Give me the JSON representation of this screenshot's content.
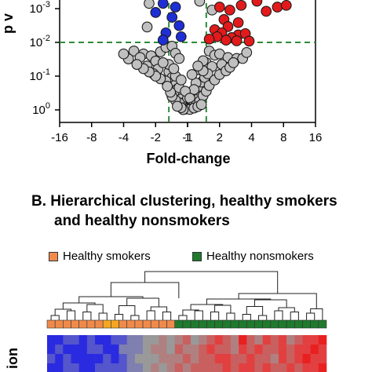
{
  "chart_data": [
    {
      "type": "scatter",
      "title": "",
      "xlabel": "Fold-change",
      "ylabel": "p v",
      "x_scale": "log2",
      "y_scale": "log10-reversed",
      "xlim": [
        -16,
        16
      ],
      "ylim": [
        1,
        0.0005
      ],
      "x_ticks": [
        "-16",
        "-8",
        "-4",
        "-2",
        "-1",
        "1",
        "2",
        "4",
        "8",
        "16"
      ],
      "y_ticks": [
        "10-3",
        "10-2",
        "10-1",
        "100"
      ],
      "thresholds": {
        "fold_change": [
          -1.5,
          1.5
        ],
        "p_value": 0.01,
        "style": "dashed",
        "color": "#2e8b3a"
      },
      "grid": false,
      "series": [
        {
          "name": "",
          "color": "#1f2fd6",
          "points": [
            {
              "x": -1.7,
              "y": 0.0007
            },
            {
              "x": -1.3,
              "y": 0.0009
            },
            {
              "x": -2.0,
              "y": 0.0013
            },
            {
              "x": -1.4,
              "y": 0.0018
            },
            {
              "x": -1.2,
              "y": 0.0032
            },
            {
              "x": -1.6,
              "y": 0.0052
            },
            {
              "x": -1.15,
              "y": 0.0068
            },
            {
              "x": -1.7,
              "y": 0.0085
            }
          ]
        },
        {
          "name": "",
          "color": "#e31a1c",
          "points": [
            {
              "x": 2.0,
              "y": 0.0009
            },
            {
              "x": 2.5,
              "y": 0.0011
            },
            {
              "x": 3.2,
              "y": 0.0008
            },
            {
              "x": 4.5,
              "y": 0.0006
            },
            {
              "x": 5.5,
              "y": 0.0012
            },
            {
              "x": 7.0,
              "y": 0.0009
            },
            {
              "x": 8.5,
              "y": 0.0008
            },
            {
              "x": 2.2,
              "y": 0.0021
            },
            {
              "x": 3.0,
              "y": 0.0026
            },
            {
              "x": 2.4,
              "y": 0.0034
            },
            {
              "x": 1.8,
              "y": 0.0042
            },
            {
              "x": 2.1,
              "y": 0.0052
            },
            {
              "x": 3.0,
              "y": 0.006
            },
            {
              "x": 3.5,
              "y": 0.0055
            },
            {
              "x": 1.9,
              "y": 0.0068
            },
            {
              "x": 2.6,
              "y": 0.0072
            },
            {
              "x": 1.6,
              "y": 0.008
            },
            {
              "x": 2.3,
              "y": 0.0086
            },
            {
              "x": 2.9,
              "y": 0.009
            },
            {
              "x": 3.8,
              "y": 0.0092
            }
          ]
        },
        {
          "name": "",
          "color": "#c0c0c0",
          "points": [
            {
              "x": -2.3,
              "y": 0.0007
            },
            {
              "x": 1.3,
              "y": 0.0006
            },
            {
              "x": 1.7,
              "y": 0.0011
            },
            {
              "x": -2.4,
              "y": 0.0035
            },
            {
              "x": -3.2,
              "y": 0.018
            },
            {
              "x": -2.6,
              "y": 0.022
            },
            {
              "x": -2.8,
              "y": 0.028
            },
            {
              "x": -2.2,
              "y": 0.025
            },
            {
              "x": -3.6,
              "y": 0.031
            },
            {
              "x": -2.0,
              "y": 0.036
            },
            {
              "x": -1.8,
              "y": 0.019
            },
            {
              "x": -1.6,
              "y": 0.014
            },
            {
              "x": -1.4,
              "y": 0.013
            },
            {
              "x": -1.3,
              "y": 0.021
            },
            {
              "x": -1.2,
              "y": 0.03
            },
            {
              "x": 1.6,
              "y": 0.018
            },
            {
              "x": 1.8,
              "y": 0.024
            },
            {
              "x": 2.0,
              "y": 0.022
            },
            {
              "x": 2.4,
              "y": 0.028
            },
            {
              "x": 2.9,
              "y": 0.03
            },
            {
              "x": 1.5,
              "y": 0.04
            },
            {
              "x": 1.7,
              "y": 0.052
            },
            {
              "x": 2.1,
              "y": 0.045
            },
            {
              "x": 1.3,
              "y": 0.065
            },
            {
              "x": -2.4,
              "y": 0.05
            },
            {
              "x": -1.9,
              "y": 0.062
            },
            {
              "x": -1.5,
              "y": 0.075
            },
            {
              "x": -2.1,
              "y": 0.085
            },
            {
              "x": -1.4,
              "y": 0.11
            },
            {
              "x": -1.6,
              "y": 0.14
            },
            {
              "x": -1.3,
              "y": 0.18
            },
            {
              "x": -1.25,
              "y": 0.24
            },
            {
              "x": -1.2,
              "y": 0.3
            },
            {
              "x": -1.1,
              "y": 0.38
            },
            {
              "x": -1.15,
              "y": 0.48
            },
            {
              "x": -1.05,
              "y": 0.58
            },
            {
              "x": 1.05,
              "y": 0.6
            },
            {
              "x": 1.1,
              "y": 0.5
            },
            {
              "x": 1.15,
              "y": 0.42
            },
            {
              "x": 1.2,
              "y": 0.33
            },
            {
              "x": 1.25,
              "y": 0.26
            },
            {
              "x": 1.3,
              "y": 0.2
            },
            {
              "x": 1.35,
              "y": 0.15
            },
            {
              "x": 1.45,
              "y": 0.11
            },
            {
              "x": 1.55,
              "y": 0.085
            },
            {
              "x": -1.05,
              "y": 0.7
            },
            {
              "x": 1.0,
              "y": 0.75
            },
            {
              "x": -1.1,
              "y": 0.65
            },
            {
              "x": 1.1,
              "y": 0.68
            },
            {
              "x": 1.0,
              "y": 0.55
            },
            {
              "x": -1.0,
              "y": 0.45
            },
            {
              "x": 1.05,
              "y": 0.35
            },
            {
              "x": -1.2,
              "y": 0.22
            },
            {
              "x": 1.2,
              "y": 0.16
            },
            {
              "x": -1.3,
              "y": 0.1
            },
            {
              "x": 1.4,
              "y": 0.07
            },
            {
              "x": -1.5,
              "y": 0.045
            },
            {
              "x": 1.4,
              "y": 0.035
            },
            {
              "x": -1.7,
              "y": 0.04
            },
            {
              "x": 1.25,
              "y": 0.05
            },
            {
              "x": -1.35,
              "y": 0.06
            },
            {
              "x": 1.1,
              "y": 0.09
            },
            {
              "x": -1.15,
              "y": 0.13
            },
            {
              "x": 1.15,
              "y": 0.25
            },
            {
              "x": -1.05,
              "y": 0.28
            },
            {
              "x": 1.05,
              "y": 0.45
            },
            {
              "x": -1.1,
              "y": 0.8
            },
            {
              "x": 1.1,
              "y": 0.82
            },
            {
              "x": 1.2,
              "y": 0.72
            },
            {
              "x": -1.2,
              "y": 0.62
            },
            {
              "x": -1.3,
              "y": 0.52
            },
            {
              "x": 1.3,
              "y": 0.55
            },
            {
              "x": -1.4,
              "y": 0.4
            },
            {
              "x": 1.4,
              "y": 0.38
            },
            {
              "x": -1.45,
              "y": 0.3
            },
            {
              "x": 1.5,
              "y": 0.28
            },
            {
              "x": -1.55,
              "y": 0.2
            },
            {
              "x": 1.6,
              "y": 0.19
            },
            {
              "x": -1.8,
              "y": 0.12
            },
            {
              "x": 1.8,
              "y": 0.13
            },
            {
              "x": -2.0,
              "y": 0.1
            },
            {
              "x": 2.0,
              "y": 0.09
            },
            {
              "x": 2.3,
              "y": 0.07
            },
            {
              "x": -2.3,
              "y": 0.075
            },
            {
              "x": 2.5,
              "y": 0.055
            },
            {
              "x": -2.6,
              "y": 0.06
            },
            {
              "x": 2.7,
              "y": 0.04
            },
            {
              "x": -3.0,
              "y": 0.045
            },
            {
              "x": 3.3,
              "y": 0.03
            },
            {
              "x": -4.0,
              "y": 0.022
            },
            {
              "x": 3.6,
              "y": 0.02
            },
            {
              "x": -1.0,
              "y": 0.9
            },
            {
              "x": 1.0,
              "y": 0.92
            },
            {
              "x": -1.05,
              "y": 0.95
            },
            {
              "x": 1.05,
              "y": 0.97
            },
            {
              "x": -1.1,
              "y": 0.98
            },
            {
              "x": 1.15,
              "y": 0.88
            },
            {
              "x": -1.15,
              "y": 0.86
            },
            {
              "x": 1.25,
              "y": 0.8
            },
            {
              "x": -1.25,
              "y": 0.78
            },
            {
              "x": 1.35,
              "y": 0.7
            }
          ]
        }
      ]
    },
    {
      "type": "dendrogram-heatmap",
      "title": "B. Hierarchical clustering, healthy smokers and healthy nonsmokers",
      "title_line1": "B. Hierarchical clustering, healthy smokers",
      "title_line2": "and healthy nonsmokers",
      "legend": [
        {
          "label": "Healthy smokers",
          "color": "#f08a4b"
        },
        {
          "label": "Healthy nonsmokers",
          "color": "#1f7a2e"
        }
      ],
      "groups": [
        "smoker",
        "smoker",
        "smoker",
        "smoker",
        "smoker",
        "smoker",
        "smoker",
        "smoker",
        "smoker",
        "smoker",
        "smoker",
        "smoker",
        "smoker",
        "smoker",
        "smoker",
        "smoker",
        "nonsmoker",
        "nonsmoker",
        "nonsmoker",
        "nonsmoker",
        "nonsmoker",
        "nonsmoker",
        "nonsmoker",
        "nonsmoker",
        "nonsmoker",
        "nonsmoker",
        "nonsmoker",
        "nonsmoker",
        "nonsmoker",
        "nonsmoker",
        "nonsmoker",
        "nonsmoker",
        "nonsmoker",
        "nonsmoker",
        "nonsmoker"
      ],
      "highlight_columns": [
        7,
        8
      ],
      "highlight_color": "#f5a623",
      "row_label": "ion",
      "heatmap_colors": [
        "#e82020",
        "#e24040",
        "#c86060",
        "#b08080",
        "#999999",
        "#7f7fb0",
        "#5555cc",
        "#2a2ae0"
      ],
      "heatmap": [
        [
          7,
          7,
          6,
          6,
          7,
          6,
          7,
          7,
          6,
          6,
          5,
          5,
          4,
          4,
          3,
          4,
          3,
          2,
          4,
          3,
          2,
          1,
          2,
          3,
          0,
          2,
          3,
          1,
          2,
          1,
          3,
          2,
          1,
          1,
          0
        ],
        [
          7,
          6,
          7,
          7,
          7,
          6,
          6,
          7,
          7,
          5,
          5,
          5,
          4,
          3,
          3,
          4,
          2,
          3,
          3,
          2,
          1,
          2,
          2,
          3,
          1,
          2,
          1,
          2,
          2,
          1,
          2,
          1,
          1,
          0,
          1
        ],
        [
          6,
          7,
          6,
          7,
          7,
          7,
          7,
          6,
          7,
          6,
          5,
          4,
          4,
          4,
          3,
          3,
          3,
          2,
          3,
          2,
          2,
          1,
          1,
          2,
          2,
          1,
          2,
          2,
          3,
          1,
          2,
          1,
          0,
          1,
          1
        ],
        [
          7,
          7,
          6,
          6,
          7,
          7,
          6,
          6,
          6,
          6,
          5,
          5,
          4,
          3,
          4,
          3,
          2,
          3,
          2,
          2,
          2,
          2,
          1,
          2,
          1,
          1,
          2,
          1,
          2,
          2,
          1,
          2,
          1,
          1,
          0
        ]
      ],
      "heatmap_row_count_visible": 4
    }
  ]
}
